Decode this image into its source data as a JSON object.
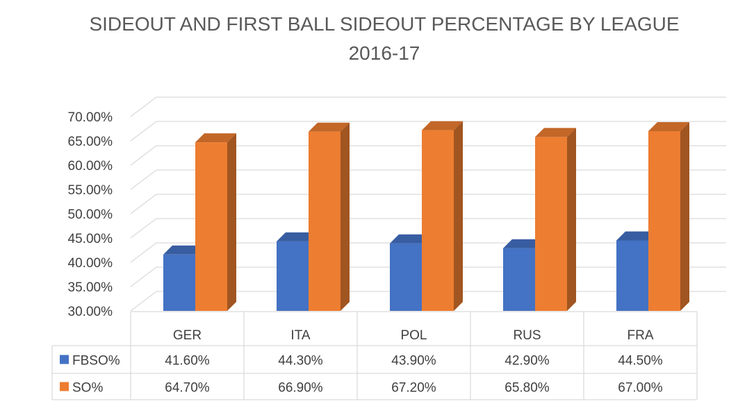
{
  "chart_data": {
    "type": "bar",
    "title_line1": "SIDEOUT AND FIRST BALL SIDEOUT PERCENTAGE BY LEAGUE",
    "title_line2": "2016-17",
    "categories": [
      "GER",
      "ITA",
      "POL",
      "RUS",
      "FRA"
    ],
    "series": [
      {
        "name": "FBSO%",
        "values": [
          41.6,
          44.3,
          43.9,
          42.9,
          44.5
        ],
        "labels": [
          "41.60%",
          "44.30%",
          "43.90%",
          "42.90%",
          "44.50%"
        ],
        "color": "#4472C4"
      },
      {
        "name": "SO%",
        "values": [
          64.7,
          66.9,
          67.2,
          65.8,
          67.0
        ],
        "labels": [
          "64.70%",
          "66.90%",
          "67.20%",
          "65.80%",
          "67.00%"
        ],
        "color": "#ED7D31"
      }
    ],
    "ylim": [
      30,
      70
    ],
    "yticks": [
      "30.00%",
      "35.00%",
      "40.00%",
      "45.00%",
      "50.00%",
      "55.00%",
      "60.00%",
      "65.00%",
      "70.00%"
    ],
    "grid": true,
    "data_table": true,
    "three_d": true
  }
}
